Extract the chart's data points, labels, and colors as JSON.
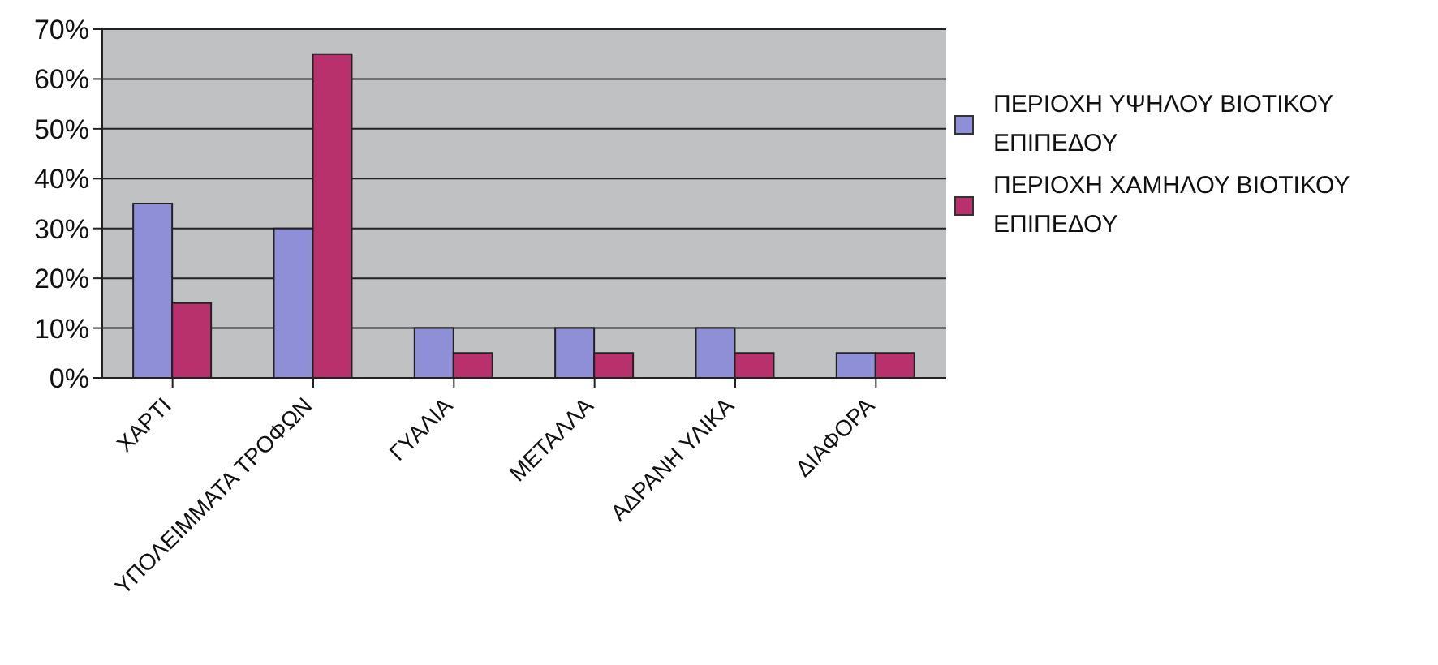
{
  "chart_data": {
    "type": "bar",
    "categories": [
      "ΧΑΡΤΙ",
      "ΥΠΟΛΕΙΜΜΑΤΑ ΤΡΟΦΩΝ",
      "ΓΥΑΛΙΑ",
      "ΜΕΤΑΛΛΑ",
      "ΑΔΡΑΝΗ ΥΛΙΚΑ",
      "ΔΙΑΦΟΡΑ"
    ],
    "series": [
      {
        "name": "ΠΕΡΙΟΧΗ ΥΨΗΛΟΥ ΒΙΟΤΙΚΟΥ ΕΠΙΠΕΔΟΥ",
        "color": "#8f8fd8",
        "values": [
          35,
          30,
          10,
          10,
          10,
          5
        ]
      },
      {
        "name": "ΠΕΡΙΟΧΗ ΧΑΜΗΛΟΥ ΒΙΟΤΙΚΟΥ ΕΠΙΠΕΔΟΥ",
        "color": "#b8306c",
        "values": [
          15,
          65,
          5,
          5,
          5,
          5
        ]
      }
    ],
    "ylim": [
      0,
      70
    ],
    "yticks": [
      {
        "value": 0,
        "label": "0%"
      },
      {
        "value": 10,
        "label": "10%"
      },
      {
        "value": 20,
        "label": "20%"
      },
      {
        "value": 30,
        "label": "30%"
      },
      {
        "value": 40,
        "label": "40%"
      },
      {
        "value": 50,
        "label": "50%"
      },
      {
        "value": 60,
        "label": "60%"
      },
      {
        "value": 70,
        "label": "70%"
      }
    ],
    "grid": "y",
    "legend": "right"
  }
}
